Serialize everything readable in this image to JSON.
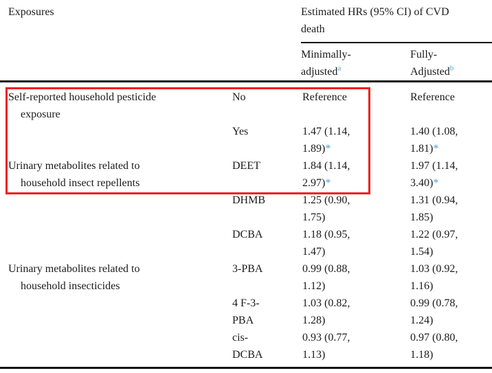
{
  "colors": {
    "red": "#ee1c1c",
    "blue": "#4a9fd8",
    "text": "#1b1b1b"
  },
  "table": {
    "header": {
      "exposures": "Exposures",
      "hr_header_line1": "Estimated HRs (95% CI) of CVD",
      "hr_header_line2": "death",
      "col_min_line1": "Minimally-",
      "col_min_line2": "adjusted",
      "col_min_footnote": "a",
      "col_full_line1": "Fully-",
      "col_full_line2": "Adjusted",
      "col_full_footnote": "b"
    },
    "rows": [
      {
        "exposure_line1": "Self-reported household pesticide",
        "exposure_line2": "exposure",
        "category_line1": "No",
        "min_line1": "Reference",
        "full_line1": "Reference"
      },
      {
        "category_line1": "Yes",
        "min_line1": "1.47 (1.14,",
        "min_line2": "1.89)",
        "min_star": "*",
        "full_line1": "1.40 (1.08,",
        "full_line2": "1.81)",
        "full_star": "*"
      },
      {
        "exposure_line1": "Urinary metabolites related to",
        "exposure_line2": "household insect repellents",
        "category_line1": "DEET",
        "min_line1": "1.84 (1.14,",
        "min_line2": "2.97)",
        "min_star": "*",
        "full_line1": "1.97 (1.14,",
        "full_line2": "3.40)",
        "full_star": "*"
      },
      {
        "category_line1": "DHMB",
        "min_line1": "1.25 (0.90,",
        "min_line2": "1.75)",
        "full_line1": "1.31 (0.94,",
        "full_line2": "1.85)"
      },
      {
        "category_line1": "DCBA",
        "min_line1": "1.18 (0.95,",
        "min_line2": "1.47)",
        "full_line1": "1.22 (0.97,",
        "full_line2": "1.54)"
      },
      {
        "exposure_line1": "Urinary metabolites related to",
        "exposure_line2": "household insecticides",
        "category_line1": "3-PBA",
        "min_line1": "0.99 (0.88,",
        "min_line2": "1.12)",
        "full_line1": "1.03 (0.92,",
        "full_line2": "1.16)"
      },
      {
        "category_line1": "4 F-3-",
        "category_line2": "PBA",
        "min_line1": "1.03 (0.82,",
        "min_line2": "1.28)",
        "full_line1": "0.99 (0.78,",
        "full_line2": "1.24)"
      },
      {
        "category_line1": "cis-",
        "category_line2": "DCBA",
        "min_line1": "0.93 (0.77,",
        "min_line2": "1.13)",
        "full_line1": "0.97 (0.80,",
        "full_line2": "1.18)"
      }
    ]
  }
}
